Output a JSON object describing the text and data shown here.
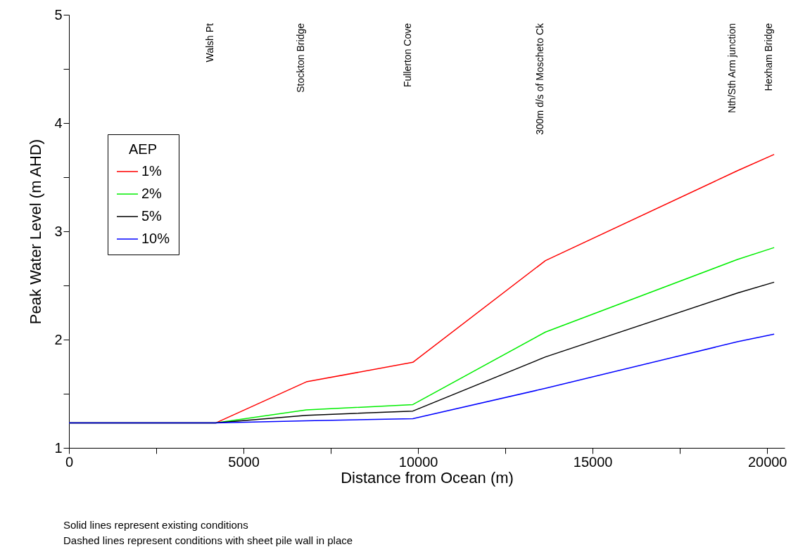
{
  "chart_data": {
    "type": "line",
    "xlabel": "Distance from Ocean (m)",
    "ylabel": "Peak Water Level (m AHD)",
    "legend_title": "AEP",
    "x": [
      0,
      4200,
      6800,
      9850,
      13650,
      19150,
      20200
    ],
    "series": [
      {
        "name": "1%",
        "color": "#ff0000",
        "values": [
          1.23,
          1.23,
          1.61,
          1.79,
          2.73,
          3.56,
          3.71
        ]
      },
      {
        "name": "2%",
        "color": "#00ee00",
        "values": [
          1.23,
          1.23,
          1.35,
          1.4,
          2.07,
          2.74,
          2.85
        ]
      },
      {
        "name": "5%",
        "color": "#000000",
        "values": [
          1.23,
          1.23,
          1.3,
          1.34,
          1.84,
          2.43,
          2.53
        ]
      },
      {
        "name": "10%",
        "color": "#0000ff",
        "values": [
          1.23,
          1.23,
          1.25,
          1.27,
          1.55,
          1.98,
          2.05
        ]
      }
    ],
    "xlim": [
      0,
      20500
    ],
    "ylim": [
      1,
      5
    ],
    "xticks": [
      0,
      {
        "value": 2500,
        "label": null
      },
      5000,
      {
        "value": 7500,
        "label": null
      },
      10000,
      {
        "value": 12500,
        "label": null
      },
      15000,
      {
        "value": 17500,
        "label": null
      },
      20000
    ],
    "yticks": [
      1,
      {
        "value": 1.5,
        "label": null
      },
      2,
      {
        "value": 2.5,
        "label": null
      },
      3,
      {
        "value": 3.5,
        "label": null
      },
      4,
      {
        "value": 4.5,
        "label": null
      },
      5
    ],
    "annotations": [
      "Walsh Pt",
      "Stockton Bridge",
      "Fullerton Cove",
      "300m d/s of Moscheto Ck",
      "Nth/Sth Arm junction",
      "Hexham Bridge",
      "Solid lines represent existing conditions",
      "Dashed lines represent conditions with sheet pile wall in place"
    ],
    "grid": false,
    "legend": "left",
    "marker": "none",
    "line_style": "solid"
  }
}
